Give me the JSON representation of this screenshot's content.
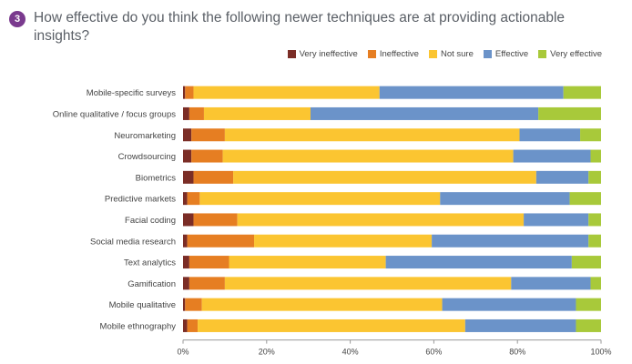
{
  "question": {
    "number": "3",
    "title": "How effective do you think the following newer techniques are at providing actionable insights?"
  },
  "chart_data": {
    "type": "bar",
    "orientation": "horizontal",
    "stacked": true,
    "xlim": [
      0,
      100
    ],
    "xticks": [
      "0%",
      "20%",
      "40%",
      "60%",
      "80%",
      "100%"
    ],
    "legend_position": "top-right",
    "grid": false,
    "categories": [
      "Mobile-specific surveys",
      "Online qualitative / focus groups",
      "Neuromarketing",
      "Crowdsourcing",
      "Biometrics",
      "Predictive markets",
      "Facial coding",
      "Social media research",
      "Text analytics",
      "Gamification",
      "Mobile qualitative",
      "Mobile ethnography"
    ],
    "series": [
      {
        "name": "Very ineffective",
        "color": "#7b2d26",
        "values": [
          0.5,
          1.5,
          2,
          2,
          2.5,
          1,
          2.5,
          1,
          1.5,
          1.5,
          0.5,
          1
        ]
      },
      {
        "name": "Ineffective",
        "color": "#e67e22",
        "values": [
          2,
          3.5,
          8,
          7.5,
          9.5,
          3,
          10.5,
          16,
          9.5,
          8.5,
          4,
          2.5
        ]
      },
      {
        "name": "Not sure",
        "color": "#fbc531",
        "values": [
          44.5,
          25.5,
          70.5,
          69.5,
          72.5,
          57.5,
          68.5,
          42.5,
          37.5,
          68.5,
          57.5,
          64
        ]
      },
      {
        "name": "Effective",
        "color": "#6b93c9",
        "values": [
          44,
          54.5,
          14.5,
          18.5,
          12.5,
          31,
          15.5,
          37.5,
          44.5,
          19,
          32,
          26.5
        ]
      },
      {
        "name": "Very effective",
        "color": "#a8c93a",
        "values": [
          9,
          15,
          5,
          2.5,
          3,
          7.5,
          3,
          3,
          7,
          2.5,
          6,
          6
        ]
      }
    ]
  }
}
